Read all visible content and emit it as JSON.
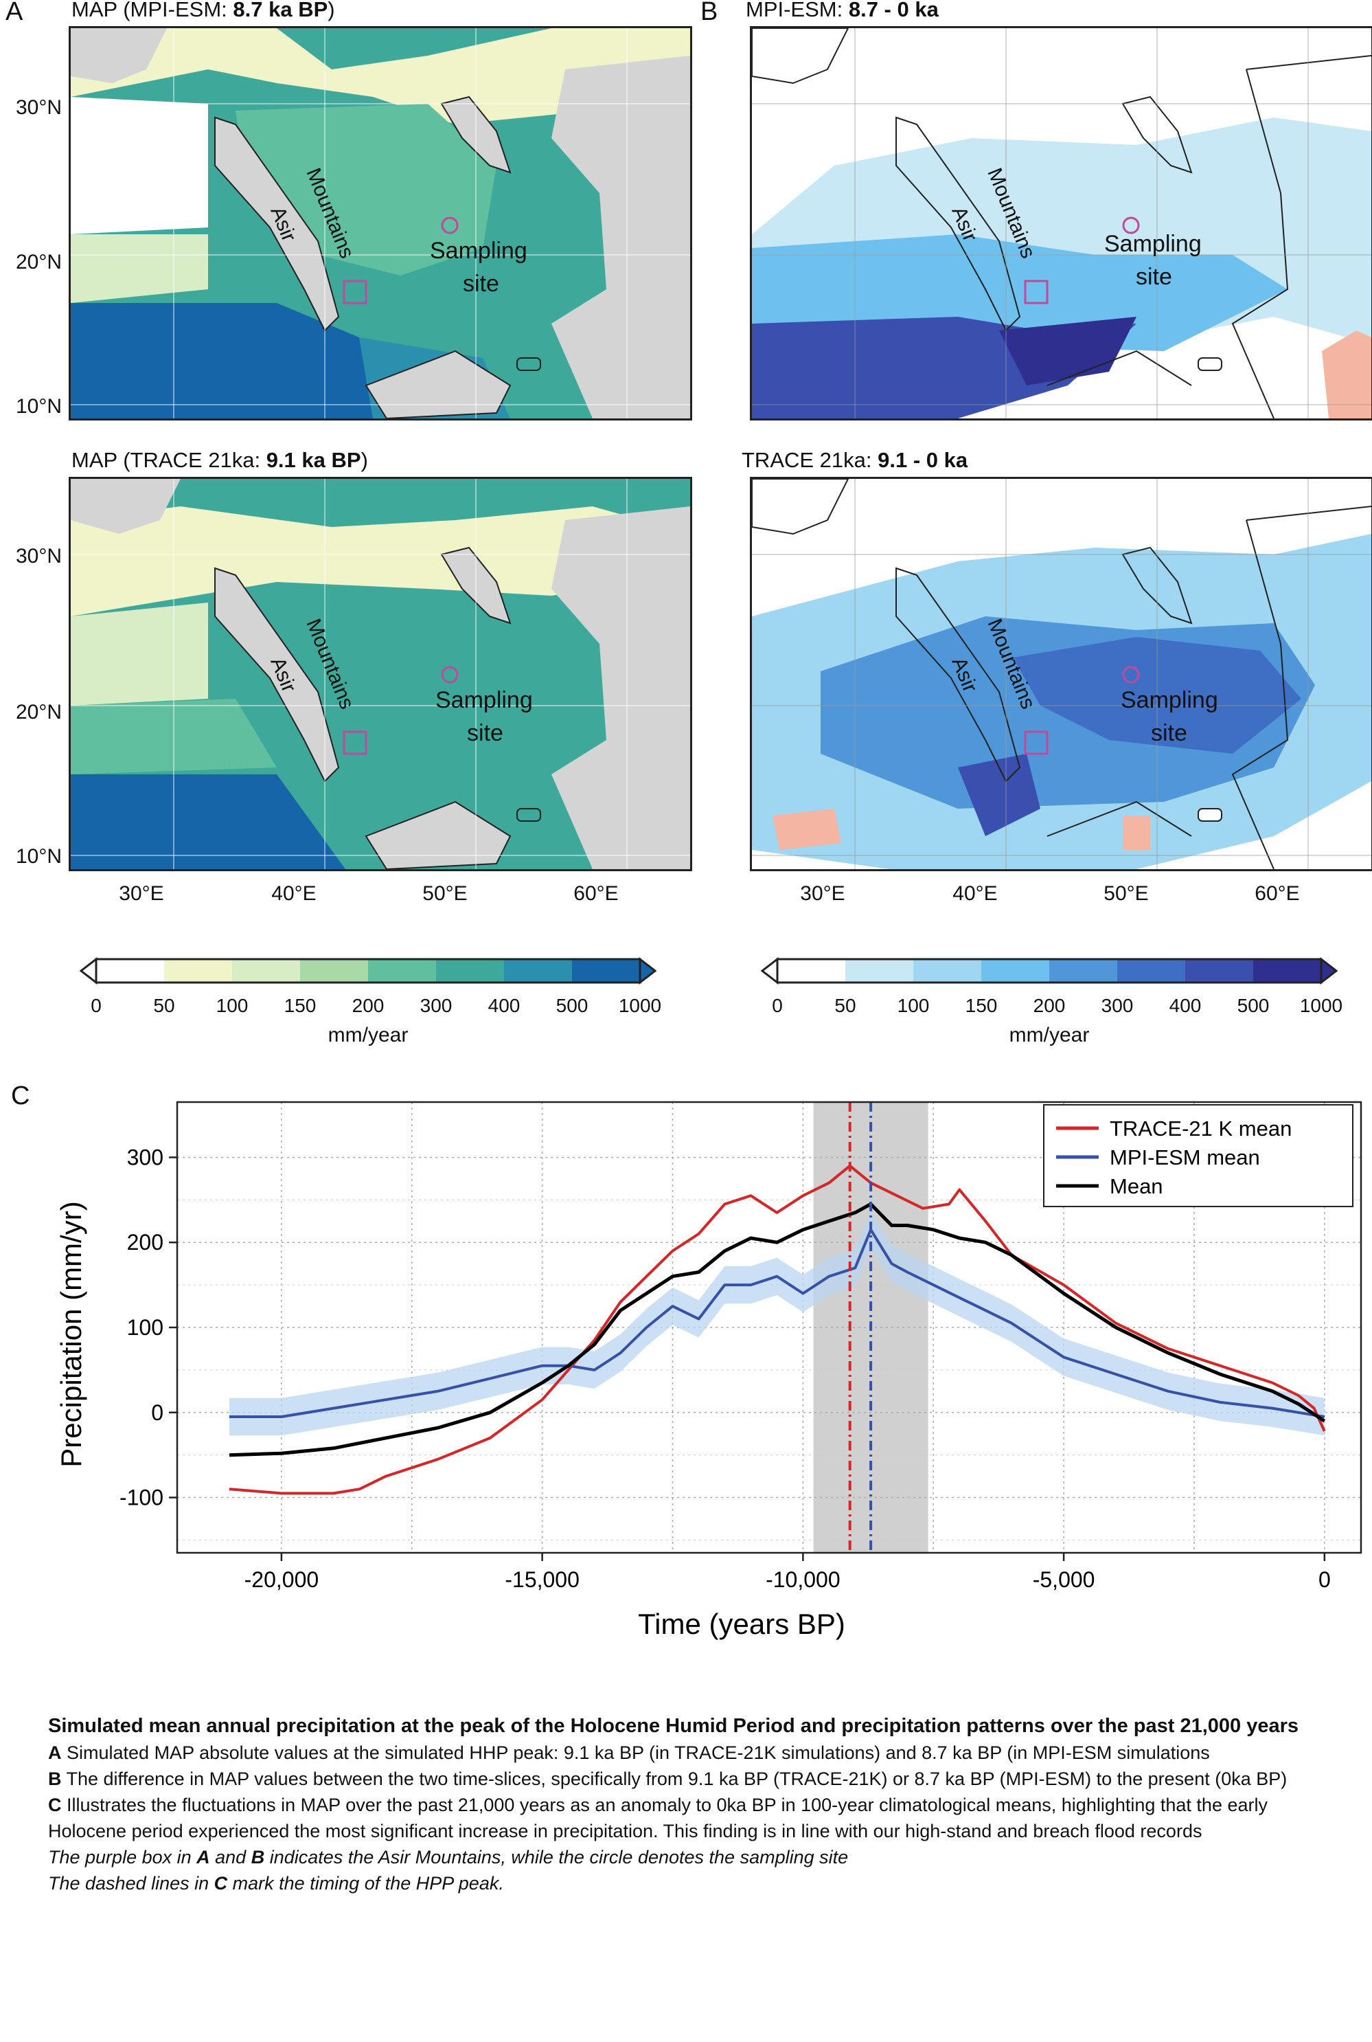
{
  "panels": {
    "A": {
      "letter": "A",
      "top_prefix": "MAP (MPI-ESM: ",
      "top_bold": "8.7 ka BP",
      "top_suffix": ")",
      "bottom_prefix": "MAP (TRACE 21ka: ",
      "bottom_bold": "9.1 ka BP",
      "bottom_suffix": ")"
    },
    "B": {
      "letter": "B",
      "top_prefix": "MPI-ESM: ",
      "top_bold": "8.7 - 0 ka",
      "top_suffix": "",
      "bottom_prefix": "TRACE 21ka: ",
      "bottom_bold": "9.1 - 0 ka",
      "bottom_suffix": ""
    },
    "C": {
      "letter": "C"
    }
  },
  "map_labels": {
    "lat_ticks": [
      "30°N",
      "20°N",
      "10°N"
    ],
    "lon_ticks": [
      "30°E",
      "40°E",
      "50°E",
      "60°E"
    ],
    "asir": "Asir",
    "mountains": "Mountains",
    "sampling": "Sampling",
    "site": "site"
  },
  "colorbars": {
    "absolute": {
      "ticks": [
        "0",
        "50",
        "100",
        "150",
        "200",
        "300",
        "400",
        "500",
        "1000"
      ],
      "colors": [
        "#ffffff",
        "#f0f4c8",
        "#d8ecc6",
        "#a9d9a6",
        "#5fbf9e",
        "#3ea99a",
        "#2b8fae",
        "#1565a8"
      ],
      "unit": "mm/year"
    },
    "difference": {
      "ticks": [
        "0",
        "50",
        "100",
        "150",
        "200",
        "300",
        "400",
        "500",
        "1000"
      ],
      "colors": [
        "#ffffff",
        "#c9e8f5",
        "#9fd6f2",
        "#6ec1ef",
        "#4f97d9",
        "#3e6fc5",
        "#3a4fae",
        "#2e2f8f"
      ],
      "unit": "mm/year"
    }
  },
  "colors": {
    "land_gray": "#d4d4d4",
    "trace_red": "#d62728",
    "mpi_blue": "#3751a8",
    "mean_black": "#000000",
    "purple": "#c04a9a",
    "shade": "#d0d0d0",
    "band_blue": "#b9d6f0"
  },
  "chart_data": {
    "type": "line",
    "title": "",
    "xlabel": "Time (years BP)",
    "ylabel": "Precipitation (mm/yr)",
    "xlim": [
      -22000,
      700
    ],
    "ylim": [
      -165,
      365
    ],
    "xticks": [
      -20000,
      -15000,
      -10000,
      -5000,
      0
    ],
    "xtick_labels": [
      "-20,000",
      "-15,000",
      "-10,000",
      "-5,000",
      "0"
    ],
    "yticks": [
      300,
      200,
      100,
      0,
      -100
    ],
    "ytick_labels": [
      "300",
      "200",
      "100",
      "0",
      "-100"
    ],
    "grid": true,
    "legend_position": "top-right",
    "shaded_interval": [
      -9800,
      -7600
    ],
    "vlines": [
      {
        "x": -9100,
        "series": "TRACE-21 K mean"
      },
      {
        "x": -8700,
        "series": "MPI-ESM mean"
      }
    ],
    "series": [
      {
        "name": "TRACE-21 K mean",
        "x": [
          -21000,
          -20000,
          -19000,
          -18500,
          -18000,
          -17000,
          -16000,
          -15000,
          -14500,
          -14000,
          -13500,
          -13000,
          -12500,
          -12000,
          -11500,
          -11000,
          -10500,
          -10000,
          -9500,
          -9100,
          -8700,
          -8200,
          -7700,
          -7200,
          -7000,
          -6500,
          -6000,
          -5000,
          -4000,
          -3000,
          -2000,
          -1000,
          -500,
          -200,
          0
        ],
        "values": [
          -90,
          -95,
          -95,
          -90,
          -75,
          -55,
          -30,
          15,
          50,
          85,
          130,
          160,
          190,
          210,
          245,
          255,
          235,
          255,
          270,
          290,
          270,
          255,
          240,
          245,
          262,
          225,
          185,
          150,
          105,
          75,
          55,
          35,
          20,
          5,
          -22
        ]
      },
      {
        "name": "MPI-ESM mean",
        "x": [
          -21000,
          -20000,
          -19000,
          -18000,
          -17000,
          -16000,
          -15000,
          -14500,
          -14000,
          -13500,
          -13000,
          -12500,
          -12000,
          -11500,
          -11000,
          -10500,
          -10000,
          -9500,
          -9000,
          -8700,
          -8300,
          -8000,
          -7500,
          -7000,
          -6500,
          -6000,
          -5000,
          -4000,
          -3000,
          -2000,
          -1000,
          -500,
          0
        ],
        "values": [
          -5,
          -5,
          5,
          15,
          25,
          40,
          55,
          55,
          50,
          70,
          100,
          125,
          110,
          150,
          150,
          160,
          140,
          160,
          170,
          215,
          175,
          165,
          150,
          135,
          120,
          105,
          65,
          45,
          25,
          12,
          5,
          0,
          -5
        ]
      },
      {
        "name": "Mean",
        "x": [
          -21000,
          -20000,
          -19000,
          -18000,
          -17000,
          -16000,
          -15000,
          -14500,
          -14000,
          -13500,
          -13000,
          -12500,
          -12000,
          -11500,
          -11000,
          -10500,
          -10000,
          -9500,
          -9000,
          -8700,
          -8300,
          -8000,
          -7500,
          -7000,
          -6500,
          -6000,
          -5000,
          -4000,
          -3000,
          -2000,
          -1000,
          -500,
          0
        ],
        "values": [
          -50,
          -48,
          -42,
          -30,
          -18,
          0,
          35,
          55,
          80,
          120,
          140,
          160,
          165,
          190,
          205,
          200,
          215,
          225,
          235,
          245,
          220,
          220,
          215,
          205,
          200,
          185,
          140,
          100,
          70,
          45,
          25,
          10,
          -10
        ]
      }
    ]
  },
  "caption": {
    "title": "Simulated mean annual precipitation at the peak of the Holocene Humid Period and precipitation patterns over the past 21,000 years",
    "a_key": "A",
    "a_text": " Simulated MAP absolute values at the simulated HHP peak: 9.1 ka BP (in TRACE-21K simulations) and 8.7 ka BP (in MPI-ESM simulations",
    "b_key": "B",
    "b_text": " The difference in MAP values between the two time-slices, specifically from 9.1 ka BP (TRACE-21K) or 8.7 ka BP (MPI-ESM) to the present (0ka BP)",
    "c_key": "C",
    "c_text": " Illustrates the fluctuations in MAP over the past 21,000 years as an anomaly to 0ka BP in 100-year climatological means, highlighting that the early Holocene period experienced the most significant increase in precipitation. This finding is in line with our high-stand and breach flood records",
    "note1_a": "The purple box in ",
    "note1_b1": "A",
    "note1_mid": " and ",
    "note1_b2": "B",
    "note1_c": " indicates the Asir Mountains, while the circle denotes the sampling site",
    "note2_a": "The dashed lines in ",
    "note2_b": "C",
    "note2_c": " mark the timing of the HPP peak."
  }
}
